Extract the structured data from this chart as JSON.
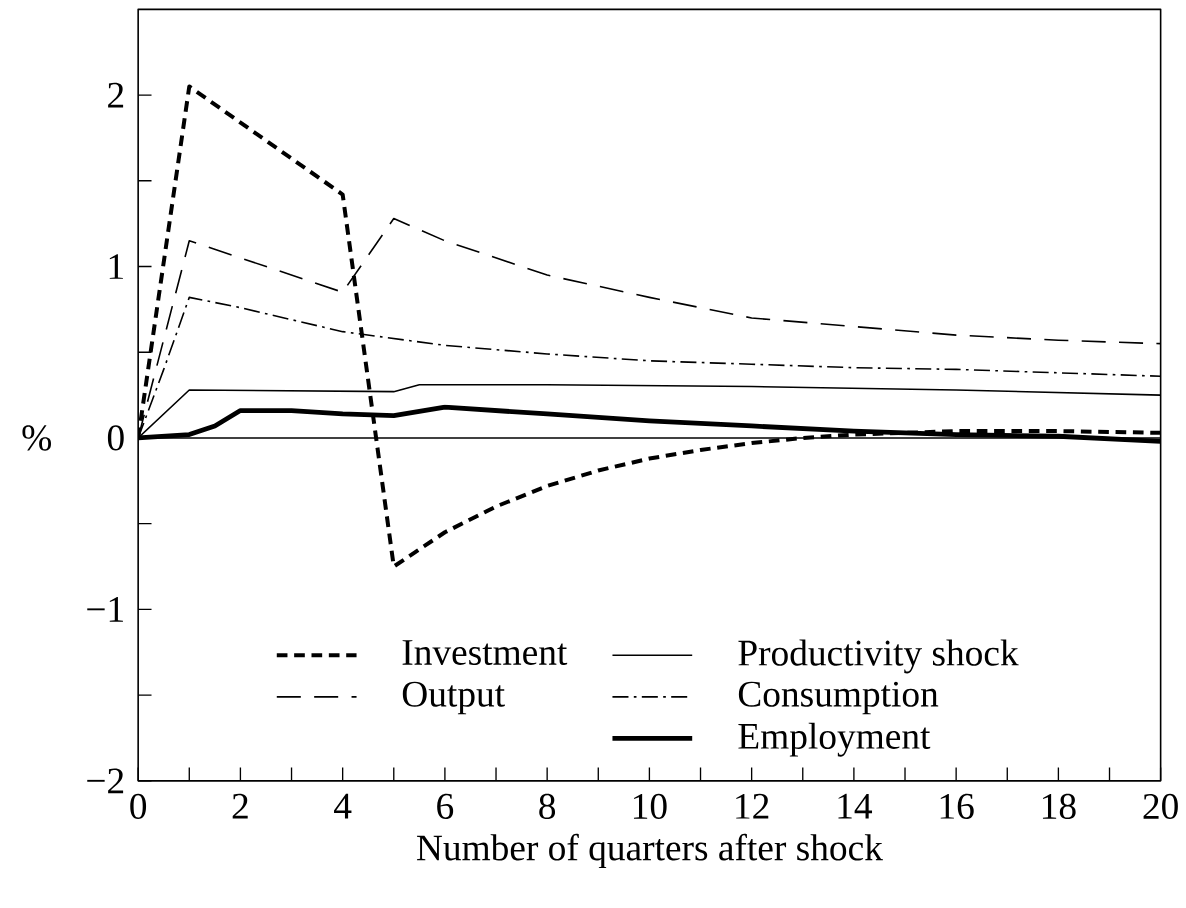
{
  "chart_data": {
    "type": "line",
    "xlabel": "Number of quarters after shock",
    "ylabel": "%",
    "xlim": [
      0,
      20
    ],
    "ylim": [
      -2,
      2.5
    ],
    "xticks": [
      0,
      {
        "value": 1,
        "label": null
      },
      2,
      {
        "value": 3,
        "label": null
      },
      4,
      {
        "value": 5,
        "label": null
      },
      6,
      {
        "value": 7,
        "label": null
      },
      8,
      {
        "value": 9,
        "label": null
      },
      10,
      {
        "value": 11,
        "label": null
      },
      12,
      {
        "value": 13,
        "label": null
      },
      14,
      {
        "value": 15,
        "label": null
      },
      16,
      {
        "value": 17,
        "label": null
      },
      18,
      {
        "value": 19,
        "label": null
      },
      20
    ],
    "yticks": [
      {
        "value": -2,
        "label": "−2"
      },
      {
        "value": -1.5,
        "label": null
      },
      {
        "value": -1,
        "label": "−1"
      },
      {
        "value": -0.5,
        "label": null
      },
      0,
      {
        "value": 0.5,
        "label": null
      },
      1,
      {
        "value": 1.5,
        "label": null
      },
      2
    ],
    "ref_lines": [
      {
        "axis": "y",
        "value": 0,
        "color": "#000000"
      }
    ],
    "legend": "bottom",
    "grid": false,
    "marker": "none",
    "series": [
      {
        "name": "Investment",
        "color": "#000000",
        "line_style": "dotted",
        "x": [
          0,
          1,
          4,
          5,
          6,
          7,
          8,
          9,
          10,
          11,
          12,
          13,
          14,
          16,
          18,
          20
        ],
        "values": [
          0,
          2.05,
          1.42,
          -0.75,
          -0.55,
          -0.4,
          -0.28,
          -0.19,
          -0.12,
          -0.07,
          -0.03,
          0,
          0.02,
          0.04,
          0.04,
          0.03
        ]
      },
      {
        "name": "Output",
        "color": "#000000",
        "line_style": "dashed",
        "x": [
          0,
          1,
          4,
          5,
          6,
          8,
          10,
          12,
          14,
          16,
          18,
          20
        ],
        "values": [
          0,
          1.15,
          0.85,
          1.28,
          1.15,
          0.95,
          0.82,
          0.7,
          0.65,
          0.6,
          0.57,
          0.55
        ]
      },
      {
        "name": "Productivity shock",
        "color": "#000000",
        "line_style": "solid",
        "x": [
          0,
          1,
          5,
          5.5,
          8,
          12,
          16,
          20
        ],
        "values": [
          0,
          0.28,
          0.27,
          0.31,
          0.31,
          0.3,
          0.28,
          0.25
        ]
      },
      {
        "name": "Consumption",
        "color": "#000000",
        "line_style": "dashdot",
        "x": [
          0,
          0.5,
          1,
          2,
          4,
          6,
          8,
          10,
          12,
          14,
          16,
          18,
          20
        ],
        "values": [
          0,
          0.4,
          0.82,
          0.76,
          0.62,
          0.54,
          0.49,
          0.45,
          0.43,
          0.41,
          0.4,
          0.38,
          0.36
        ]
      },
      {
        "name": "Employment",
        "color": "#000000",
        "line_style": "solid",
        "x": [
          0,
          1,
          1.5,
          2,
          3,
          4,
          5,
          6,
          8,
          10,
          12,
          14,
          16,
          18,
          20
        ],
        "values": [
          0,
          0.02,
          0.07,
          0.16,
          0.16,
          0.14,
          0.13,
          0.18,
          0.14,
          0.1,
          0.07,
          0.04,
          0.02,
          0.01,
          -0.02
        ]
      }
    ]
  }
}
